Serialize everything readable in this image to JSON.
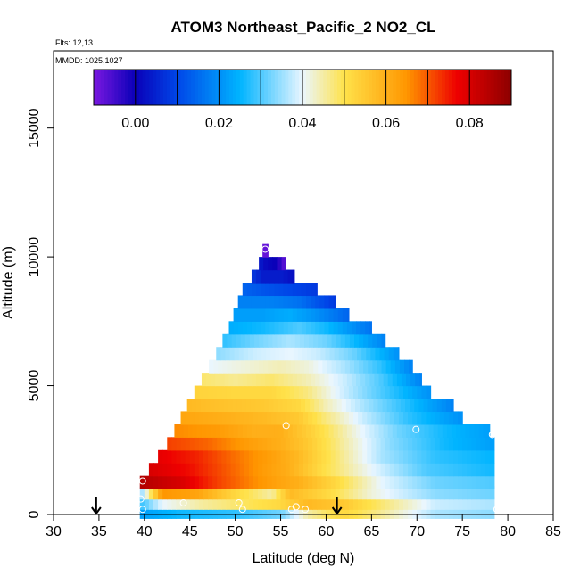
{
  "chart_data": {
    "type": "heatmap",
    "title": "ATOM3 Northeast_Pacific_2 NO2_CL",
    "annotations": {
      "flights": "Flts: 12,13",
      "dates": "MMDD: 1025,1027"
    },
    "xlabel": "Latitude (deg N)",
    "ylabel": "Altitude (m)",
    "xlim": [
      30,
      85
    ],
    "ylim": [
      0,
      18000
    ],
    "x_ticks": [
      30,
      35,
      40,
      45,
      50,
      55,
      60,
      65,
      70,
      75,
      80,
      85
    ],
    "y_ticks": [
      0,
      5000,
      10000,
      15000
    ],
    "colorbar": {
      "range": [
        -0.01,
        0.09
      ],
      "tick_values": [
        0.0,
        0.02,
        0.04,
        0.06,
        0.08
      ],
      "tick_labels": [
        "0.00",
        "0.02",
        "0.04",
        "0.06",
        "0.08"
      ],
      "colors": [
        "#7a18e0",
        "#0a00b8",
        "#0046e8",
        "#00b4ff",
        "#eaf6ff",
        "#ffe24a",
        "#ff9600",
        "#ee0000",
        "#8c0000"
      ],
      "color_stops": [
        -0.01,
        0.0,
        0.01,
        0.025,
        0.04,
        0.05,
        0.065,
        0.077,
        0.09
      ]
    },
    "layers": [
      {
        "alt": 100,
        "lat_min": 39.5,
        "lat_max": 78.5,
        "knots": [
          [
            39.5,
            0.022
          ],
          [
            44,
            0.026
          ],
          [
            50,
            0.028
          ],
          [
            55,
            0.032
          ],
          [
            58,
            0.045
          ],
          [
            62,
            0.052
          ],
          [
            66,
            0.046
          ],
          [
            72,
            0.036
          ],
          [
            78.5,
            0.034
          ]
        ]
      },
      {
        "alt": 450,
        "lat_min": 39.5,
        "lat_max": 78.5,
        "knots": [
          [
            39.5,
            0.028
          ],
          [
            42,
            0.04
          ],
          [
            46,
            0.045
          ],
          [
            50,
            0.048
          ],
          [
            55,
            0.052
          ],
          [
            58,
            0.058
          ],
          [
            62,
            0.055
          ],
          [
            66,
            0.048
          ],
          [
            72,
            0.038
          ],
          [
            78.5,
            0.036
          ]
        ]
      },
      {
        "alt": 850,
        "lat_min": 39.5,
        "lat_max": 78.5,
        "knots": [
          [
            39.5,
            0.033
          ],
          [
            42,
            0.065
          ],
          [
            46,
            0.062
          ],
          [
            50,
            0.052
          ],
          [
            54,
            0.045
          ],
          [
            56,
            0.058
          ],
          [
            60,
            0.052
          ],
          [
            65,
            0.042
          ],
          [
            72,
            0.034
          ],
          [
            78.5,
            0.032
          ]
        ]
      },
      {
        "alt": 1250,
        "lat_min": 39.5,
        "lat_max": 78.5,
        "knots": [
          [
            39.5,
            0.085
          ],
          [
            44,
            0.08
          ],
          [
            48,
            0.072
          ],
          [
            52,
            0.066
          ],
          [
            55,
            0.062
          ],
          [
            57,
            0.06
          ],
          [
            61,
            0.052
          ],
          [
            66,
            0.04
          ],
          [
            72,
            0.032
          ],
          [
            78.5,
            0.03
          ]
        ]
      },
      {
        "alt": 1750,
        "lat_min": 40.5,
        "lat_max": 78.5,
        "knots": [
          [
            40.5,
            0.08
          ],
          [
            45,
            0.076
          ],
          [
            49,
            0.07
          ],
          [
            53,
            0.064
          ],
          [
            56,
            0.06
          ],
          [
            60,
            0.05
          ],
          [
            65,
            0.04
          ],
          [
            71,
            0.03
          ],
          [
            78.5,
            0.026
          ]
        ]
      },
      {
        "alt": 2250,
        "lat_min": 41.5,
        "lat_max": 78.5,
        "knots": [
          [
            41.5,
            0.078
          ],
          [
            46,
            0.074
          ],
          [
            50,
            0.068
          ],
          [
            54,
            0.063
          ],
          [
            57,
            0.058
          ],
          [
            61,
            0.048
          ],
          [
            66,
            0.036
          ],
          [
            72,
            0.028
          ],
          [
            78.5,
            0.025
          ]
        ]
      },
      {
        "alt": 2750,
        "lat_min": 42.5,
        "lat_max": 78.5,
        "knots": [
          [
            42.5,
            0.072
          ],
          [
            47,
            0.069
          ],
          [
            51,
            0.064
          ],
          [
            55,
            0.06
          ],
          [
            58,
            0.055
          ],
          [
            62,
            0.045
          ],
          [
            67,
            0.034
          ],
          [
            73,
            0.026
          ],
          [
            78.5,
            0.022
          ]
        ]
      },
      {
        "alt": 3250,
        "lat_min": 43.3,
        "lat_max": 78.0,
        "knots": [
          [
            43.3,
            0.066
          ],
          [
            48,
            0.064
          ],
          [
            52,
            0.06
          ],
          [
            55,
            0.06
          ],
          [
            59,
            0.052
          ],
          [
            63,
            0.042
          ],
          [
            68,
            0.032
          ],
          [
            73,
            0.026
          ],
          [
            78,
            0.022
          ]
        ]
      },
      {
        "alt": 3750,
        "lat_min": 44.0,
        "lat_max": 75.0,
        "knots": [
          [
            44,
            0.062
          ],
          [
            49,
            0.06
          ],
          [
            53,
            0.058
          ],
          [
            57,
            0.055
          ],
          [
            60,
            0.047
          ],
          [
            64,
            0.038
          ],
          [
            69,
            0.028
          ],
          [
            75,
            0.02
          ]
        ]
      },
      {
        "alt": 4250,
        "lat_min": 44.7,
        "lat_max": 74.0,
        "knots": [
          [
            44.7,
            0.058
          ],
          [
            49,
            0.056
          ],
          [
            53,
            0.055
          ],
          [
            57,
            0.052
          ],
          [
            60,
            0.044
          ],
          [
            64,
            0.036
          ],
          [
            69,
            0.027
          ],
          [
            74,
            0.018
          ]
        ]
      },
      {
        "alt": 4750,
        "lat_min": 45.5,
        "lat_max": 71.5,
        "knots": [
          [
            45.5,
            0.053
          ],
          [
            50,
            0.052
          ],
          [
            54,
            0.052
          ],
          [
            58,
            0.047
          ],
          [
            61,
            0.04
          ],
          [
            65,
            0.032
          ],
          [
            71.5,
            0.02
          ]
        ]
      },
      {
        "alt": 5250,
        "lat_min": 46.3,
        "lat_max": 70.5,
        "knots": [
          [
            46.3,
            0.048
          ],
          [
            50,
            0.046
          ],
          [
            54,
            0.048
          ],
          [
            58,
            0.044
          ],
          [
            62,
            0.038
          ],
          [
            66,
            0.03
          ],
          [
            70.5,
            0.018
          ]
        ]
      },
      {
        "alt": 5750,
        "lat_min": 47.1,
        "lat_max": 69.5,
        "knots": [
          [
            47.1,
            0.04
          ],
          [
            51,
            0.042
          ],
          [
            55,
            0.044
          ],
          [
            58,
            0.042
          ],
          [
            62,
            0.036
          ],
          [
            66,
            0.028
          ],
          [
            69.5,
            0.018
          ]
        ]
      },
      {
        "alt": 6250,
        "lat_min": 47.9,
        "lat_max": 68.0,
        "knots": [
          [
            47.9,
            0.034
          ],
          [
            52,
            0.038
          ],
          [
            56,
            0.04
          ],
          [
            59,
            0.038
          ],
          [
            63,
            0.032
          ],
          [
            68,
            0.02
          ]
        ]
      },
      {
        "alt": 6750,
        "lat_min": 48.6,
        "lat_max": 66.5,
        "knots": [
          [
            48.6,
            0.028
          ],
          [
            52,
            0.032
          ],
          [
            56,
            0.036
          ],
          [
            60,
            0.032
          ],
          [
            63,
            0.026
          ],
          [
            66.5,
            0.018
          ]
        ]
      },
      {
        "alt": 7250,
        "lat_min": 49.3,
        "lat_max": 65.0,
        "knots": [
          [
            49.3,
            0.024
          ],
          [
            53,
            0.026
          ],
          [
            57,
            0.03
          ],
          [
            60,
            0.026
          ],
          [
            65,
            0.016
          ]
        ]
      },
      {
        "alt": 7750,
        "lat_min": 49.8,
        "lat_max": 62.5,
        "knots": [
          [
            49.8,
            0.022
          ],
          [
            53,
            0.022
          ],
          [
            56,
            0.024
          ],
          [
            59,
            0.02
          ],
          [
            62.5,
            0.014
          ]
        ]
      },
      {
        "alt": 8250,
        "lat_min": 50.3,
        "lat_max": 61.0,
        "knots": [
          [
            50.3,
            0.018
          ],
          [
            54,
            0.018
          ],
          [
            57,
            0.016
          ],
          [
            61,
            0.008
          ]
        ]
      },
      {
        "alt": 8750,
        "lat_min": 50.8,
        "lat_max": 59.0,
        "knots": [
          [
            50.8,
            0.014
          ],
          [
            53,
            0.012
          ],
          [
            56,
            0.01
          ],
          [
            59,
            0.008
          ]
        ]
      },
      {
        "alt": 9250,
        "lat_min": 51.8,
        "lat_max": 56.5,
        "knots": [
          [
            51.8,
            0.008
          ],
          [
            53,
            0.004
          ],
          [
            55,
            0.004
          ],
          [
            56.5,
            0.002
          ]
        ]
      },
      {
        "alt": 9750,
        "lat_min": 52.6,
        "lat_max": 55.5,
        "knots": [
          [
            52.6,
            0.004
          ],
          [
            53.5,
            0.001
          ],
          [
            54.5,
            0.0
          ],
          [
            55.5,
            -0.008
          ]
        ]
      },
      {
        "alt": 10250,
        "lat_min": 53.0,
        "lat_max": 53.6,
        "knots": [
          [
            53.0,
            -0.008
          ],
          [
            53.6,
            -0.008
          ]
        ]
      }
    ],
    "sample_points": [
      {
        "lat": 39.8,
        "alt": 1300
      },
      {
        "lat": 39.6,
        "alt": 600
      },
      {
        "lat": 39.8,
        "alt": 200
      },
      {
        "lat": 44.3,
        "alt": 450
      },
      {
        "lat": 50.4,
        "alt": 450
      },
      {
        "lat": 50.8,
        "alt": 200
      },
      {
        "lat": 55.6,
        "alt": 3450
      },
      {
        "lat": 56.2,
        "alt": 200
      },
      {
        "lat": 56.7,
        "alt": 300
      },
      {
        "lat": 57.7,
        "alt": 200
      },
      {
        "lat": 53.3,
        "alt": 10300
      },
      {
        "lat": 69.9,
        "alt": 3300
      },
      {
        "lat": 78.3,
        "alt": 3100
      },
      {
        "lat": 78.8,
        "alt": 200
      }
    ],
    "arrows": [
      {
        "lat": 34.7
      },
      {
        "lat": 61.2
      }
    ]
  }
}
